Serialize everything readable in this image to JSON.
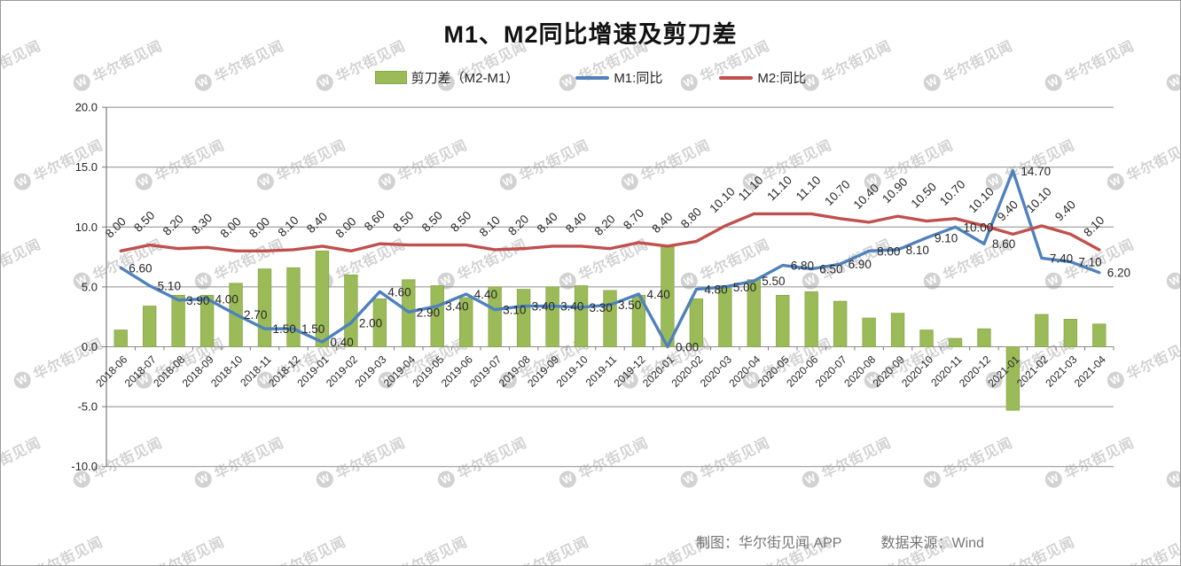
{
  "title": "M1、M2同比增速及剪刀差",
  "legend": {
    "items": [
      {
        "label": "剪刀差（M2-M1）",
        "type": "bar",
        "color": "#9BBB59"
      },
      {
        "label": "M1:同比",
        "type": "line",
        "color": "#4F81BD"
      },
      {
        "label": "M2:同比",
        "type": "line",
        "color": "#C0504D"
      }
    ]
  },
  "footer": {
    "credit": "制图：华尔街见闻 APP",
    "source": "数据来源：Wind"
  },
  "watermark": {
    "logo": "W",
    "text": "华尔街见闻"
  },
  "chart_data": {
    "type": "bar+line combo",
    "title": "M1、M2同比增速及剪刀差",
    "categories": [
      "2018-06",
      "2018-07",
      "2018-08",
      "2018-09",
      "2018-10",
      "2018-11",
      "2018-12",
      "2019-01",
      "2019-02",
      "2019-03",
      "2019-04",
      "2019-05",
      "2019-06",
      "2019-07",
      "2019-08",
      "2019-09",
      "2019-10",
      "2019-11",
      "2019-12",
      "2020-01",
      "2020-02",
      "2020-03",
      "2020-04",
      "2020-05",
      "2020-06",
      "2020-07",
      "2020-08",
      "2020-09",
      "2020-10",
      "2020-11",
      "2020-12",
      "2021-01",
      "2021-02",
      "2021-03",
      "2021-04"
    ],
    "series": [
      {
        "name": "剪刀差（M2-M1）",
        "type": "bar",
        "color": "#9BBB59",
        "values": [
          1.4,
          3.4,
          4.3,
          4.3,
          5.3,
          6.5,
          6.6,
          8.0,
          6.0,
          4.0,
          5.6,
          5.1,
          4.1,
          5.0,
          4.8,
          5.0,
          5.1,
          4.7,
          4.3,
          8.4,
          4.0,
          5.1,
          5.6,
          4.3,
          4.6,
          3.8,
          2.4,
          2.8,
          1.4,
          0.7,
          1.5,
          -5.3,
          2.7,
          2.3,
          1.9
        ],
        "data_labels": false
      },
      {
        "name": "M1:同比",
        "type": "line",
        "color": "#4F81BD",
        "values": [
          6.6,
          5.1,
          3.9,
          4.0,
          2.7,
          1.5,
          1.5,
          0.4,
          2.0,
          4.6,
          2.9,
          3.4,
          4.4,
          3.1,
          3.4,
          3.4,
          3.3,
          3.5,
          4.4,
          0.0,
          4.8,
          5.0,
          5.5,
          6.8,
          6.5,
          6.9,
          8.0,
          8.1,
          9.1,
          10.0,
          8.6,
          14.7,
          7.4,
          7.1,
          6.2
        ],
        "data_labels": true,
        "label_style": "horizontal"
      },
      {
        "name": "M2:同比",
        "type": "line",
        "color": "#C0504D",
        "values": [
          8.0,
          8.5,
          8.2,
          8.3,
          8.0,
          8.0,
          8.1,
          8.4,
          8.0,
          8.6,
          8.5,
          8.5,
          8.5,
          8.1,
          8.2,
          8.4,
          8.4,
          8.2,
          8.7,
          8.4,
          8.8,
          10.1,
          11.1,
          11.1,
          11.1,
          10.7,
          10.4,
          10.9,
          10.5,
          10.7,
          10.1,
          9.4,
          10.1,
          9.4,
          8.1
        ],
        "data_labels": true,
        "label_style": "rotated45"
      }
    ],
    "ylim": [
      -10,
      20
    ],
    "yticks": [
      20,
      15,
      10,
      5,
      0,
      -5,
      -10
    ],
    "ytick_format": "0.0",
    "label_format": "0.00",
    "x_tick_rotation": 45,
    "grid": true,
    "legend_position": "top"
  }
}
